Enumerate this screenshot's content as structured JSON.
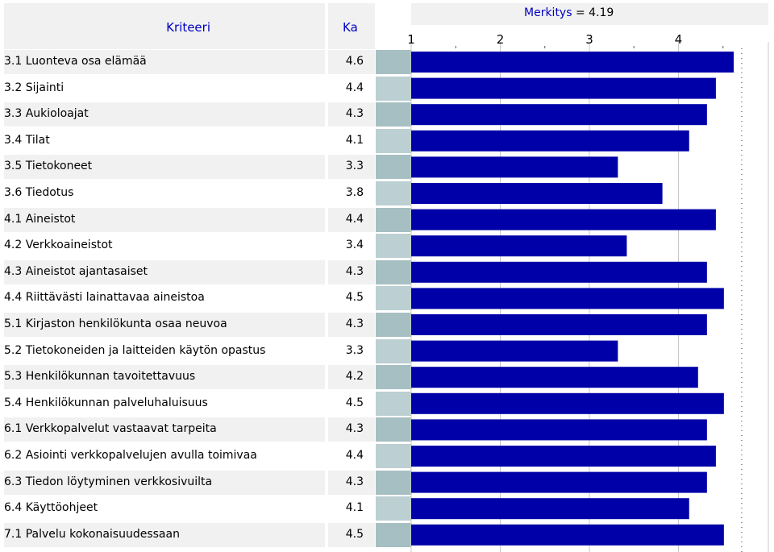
{
  "header": {
    "criteria_label": "Kriteeri",
    "mean_label": "Ka",
    "merkitys_label": "Merkitys",
    "merkitys_eq": "=",
    "merkitys_value": "4.19"
  },
  "colors": {
    "bar": "#0000a8",
    "header_text": "#0000c0",
    "row_shade": "#f1f1f1",
    "swatch_dark": "#a6bfc2",
    "swatch_light": "#bccfd2"
  },
  "chart_data": {
    "type": "bar",
    "orientation": "horizontal",
    "xlim": [
      1,
      4.6
    ],
    "ticks": [
      "1",
      "2",
      "3",
      "4"
    ],
    "importance": 4.19,
    "grid": true,
    "categories": [
      "3.1 Luonteva osa elämää",
      "3.2 Sijainti",
      "3.3 Aukioloajat",
      "3.4 Tilat",
      "3.5 Tietokoneet",
      "3.6 Tiedotus",
      "4.1 Aineistot",
      "4.2 Verkkoaineistot",
      "4.3 Aineistot ajantasaiset",
      "4.4 Riittävästi lainattavaa aineistoa",
      "5.1 Kirjaston henkilökunta osaa neuvoa",
      "5.2 Tietokoneiden ja laitteiden käytön opastus",
      "5.3 Henkilökunnan tavoitettavuus",
      "5.4 Henkilökunnan palveluhaluisuus",
      "6.1 Verkkopalvelut vastaavat tarpeita",
      "6.2 Asiointi verkkopalvelujen avulla toimivaa",
      "6.3 Tiedon löytyminen verkkosivuilta",
      "6.4 Käyttöohjeet",
      "7.1 Palvelu kokonaisuudessaan"
    ],
    "labels": [
      "4.6",
      "4.4",
      "4.3",
      "4.1",
      "3.3",
      "3.8",
      "4.4",
      "3.4",
      "4.3",
      "4.5",
      "4.3",
      "3.3",
      "4.2",
      "4.5",
      "4.3",
      "4.4",
      "4.3",
      "4.1",
      "4.5"
    ],
    "values": [
      4.62,
      4.42,
      4.32,
      4.12,
      3.32,
      3.82,
      4.42,
      3.42,
      4.32,
      4.51,
      4.32,
      3.32,
      4.22,
      4.51,
      4.32,
      4.42,
      4.32,
      4.12,
      4.51
    ]
  }
}
